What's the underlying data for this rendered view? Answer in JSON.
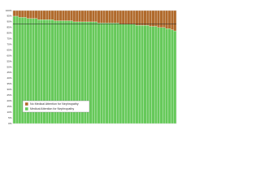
{
  "chart_data": {
    "type": "stacked_bar",
    "categories": [
      null,
      null,
      null,
      null,
      null,
      null,
      null,
      null,
      null,
      null,
      null,
      null,
      null,
      null,
      null,
      null,
      null,
      null,
      null,
      null,
      null,
      null,
      null,
      null,
      null,
      null,
      null,
      null,
      null,
      null,
      null,
      null,
      null,
      null,
      null,
      null,
      null,
      null,
      null,
      null,
      null,
      null,
      null,
      null,
      null,
      null,
      null,
      null,
      null,
      null,
      null,
      null,
      null,
      null,
      null,
      null,
      null,
      null,
      null,
      null
    ],
    "series": [
      {
        "name": "Medical Attention for Nephropathy",
        "color": "#66c95a",
        "values": [
          95,
          95,
          94,
          94,
          94,
          93,
          93,
          93,
          93,
          92,
          92,
          92,
          92,
          92,
          92,
          91,
          91,
          91,
          91,
          91,
          91,
          91,
          90,
          90,
          90,
          90,
          90,
          90,
          90,
          90,
          90,
          89,
          89,
          89,
          89,
          89,
          89,
          89,
          89,
          88,
          88,
          88,
          88,
          88,
          88,
          87,
          87,
          87,
          87,
          87,
          86,
          86,
          86,
          85,
          85,
          85,
          84,
          84,
          83,
          82
        ]
      },
      {
        "name": "No Medical Attention for Nephropathy",
        "color": "#b06a2c",
        "values": [
          5,
          5,
          6,
          6,
          6,
          7,
          7,
          7,
          7,
          8,
          8,
          8,
          8,
          8,
          8,
          9,
          9,
          9,
          9,
          9,
          9,
          9,
          10,
          10,
          10,
          10,
          10,
          10,
          10,
          10,
          10,
          11,
          11,
          11,
          11,
          11,
          11,
          11,
          11,
          12,
          12,
          12,
          12,
          12,
          12,
          13,
          13,
          13,
          13,
          13,
          14,
          14,
          14,
          15,
          15,
          15,
          16,
          16,
          17,
          18
        ]
      }
    ],
    "reference_line": 88,
    "ylim": [
      0,
      100
    ],
    "yticks": [
      {
        "value": 0,
        "label": "0%"
      },
      {
        "value": 5,
        "label": "5%"
      },
      {
        "value": 10,
        "label": "10%"
      },
      {
        "value": 15,
        "label": "15%"
      },
      {
        "value": 20,
        "label": "20%"
      },
      {
        "value": 25,
        "label": "25%"
      },
      {
        "value": 30,
        "label": "30%"
      },
      {
        "value": 35,
        "label": "35%"
      },
      {
        "value": 40,
        "label": "40%"
      },
      {
        "value": 45,
        "label": "45%"
      },
      {
        "value": 50,
        "label": "50%"
      },
      {
        "value": 55,
        "label": "55%"
      },
      {
        "value": 60,
        "label": "60%"
      },
      {
        "value": 65,
        "label": "65%"
      },
      {
        "value": 70,
        "label": "70%"
      },
      {
        "value": 75,
        "label": "75%"
      },
      {
        "value": 80,
        "label": "80%"
      },
      {
        "value": 85,
        "label": "85%"
      },
      {
        "value": 90,
        "label": "90%"
      },
      {
        "value": 95,
        "label": "95%"
      },
      {
        "value": 100,
        "label": "100%"
      }
    ],
    "legend": "lower-left"
  }
}
